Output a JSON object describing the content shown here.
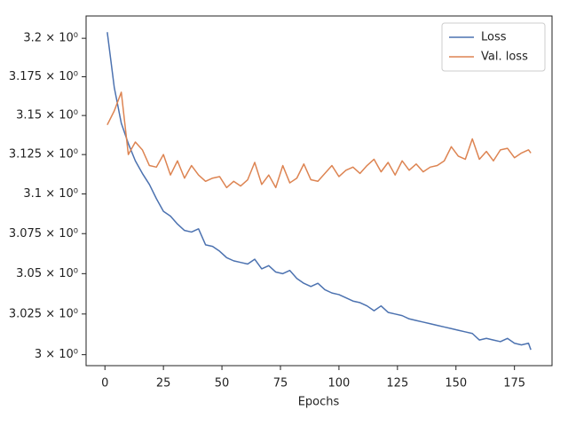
{
  "chart_data": {
    "type": "line",
    "xlabel": "Epochs",
    "x": [
      1,
      4,
      7,
      10,
      13,
      16,
      19,
      22,
      25,
      28,
      31,
      34,
      37,
      40,
      43,
      46,
      49,
      52,
      55,
      58,
      61,
      64,
      67,
      70,
      73,
      76,
      79,
      82,
      85,
      88,
      91,
      94,
      97,
      100,
      103,
      106,
      109,
      112,
      115,
      118,
      121,
      124,
      127,
      130,
      133,
      136,
      139,
      142,
      145,
      148,
      151,
      154,
      157,
      160,
      163,
      166,
      169,
      172,
      175,
      178,
      181,
      182
    ],
    "series": [
      {
        "name": "Loss",
        "color": "#4c72b0",
        "values": [
          3.204,
          3.168,
          3.145,
          3.132,
          3.121,
          3.113,
          3.106,
          3.097,
          3.089,
          3.086,
          3.081,
          3.077,
          3.076,
          3.078,
          3.068,
          3.067,
          3.064,
          3.06,
          3.058,
          3.057,
          3.056,
          3.059,
          3.053,
          3.055,
          3.051,
          3.05,
          3.052,
          3.047,
          3.044,
          3.042,
          3.044,
          3.04,
          3.038,
          3.037,
          3.035,
          3.033,
          3.032,
          3.03,
          3.027,
          3.03,
          3.026,
          3.025,
          3.024,
          3.022,
          3.021,
          3.02,
          3.019,
          3.018,
          3.017,
          3.016,
          3.015,
          3.014,
          3.013,
          3.009,
          3.01,
          3.009,
          3.008,
          3.01,
          3.007,
          3.006,
          3.007,
          3.003
        ]
      },
      {
        "name": "Val. loss",
        "color": "#dd8452",
        "values": [
          3.144,
          3.153,
          3.165,
          3.125,
          3.133,
          3.128,
          3.118,
          3.117,
          3.125,
          3.112,
          3.121,
          3.11,
          3.118,
          3.112,
          3.108,
          3.11,
          3.111,
          3.104,
          3.108,
          3.105,
          3.109,
          3.12,
          3.106,
          3.112,
          3.104,
          3.118,
          3.107,
          3.11,
          3.119,
          3.109,
          3.108,
          3.113,
          3.118,
          3.111,
          3.115,
          3.117,
          3.113,
          3.118,
          3.122,
          3.114,
          3.12,
          3.112,
          3.121,
          3.115,
          3.119,
          3.114,
          3.117,
          3.118,
          3.121,
          3.13,
          3.124,
          3.122,
          3.135,
          3.122,
          3.127,
          3.121,
          3.128,
          3.129,
          3.123,
          3.126,
          3.128,
          3.126
        ]
      }
    ],
    "xlim": [
      -8.05,
      191.05
    ],
    "xticks": [
      0,
      25,
      50,
      75,
      100,
      125,
      150,
      175
    ],
    "ylim": [
      2.9933,
      3.2146
    ],
    "ylog": true,
    "yticks": [
      {
        "value": 3.0,
        "label": "3 × 10⁰"
      },
      {
        "value": 3.025,
        "label": "3.025 × 10⁰"
      },
      {
        "value": 3.05,
        "label": "3.05 × 10⁰"
      },
      {
        "value": 3.075,
        "label": "3.075 × 10⁰"
      },
      {
        "value": 3.1,
        "label": "3.1 × 10⁰"
      },
      {
        "value": 3.125,
        "label": "3.125 × 10⁰"
      },
      {
        "value": 3.15,
        "label": "3.15 × 10⁰"
      },
      {
        "value": 3.175,
        "label": "3.175 × 10⁰"
      },
      {
        "value": 3.2,
        "label": "3.2 × 10⁰"
      }
    ],
    "grid": false,
    "legend": "upper right"
  }
}
